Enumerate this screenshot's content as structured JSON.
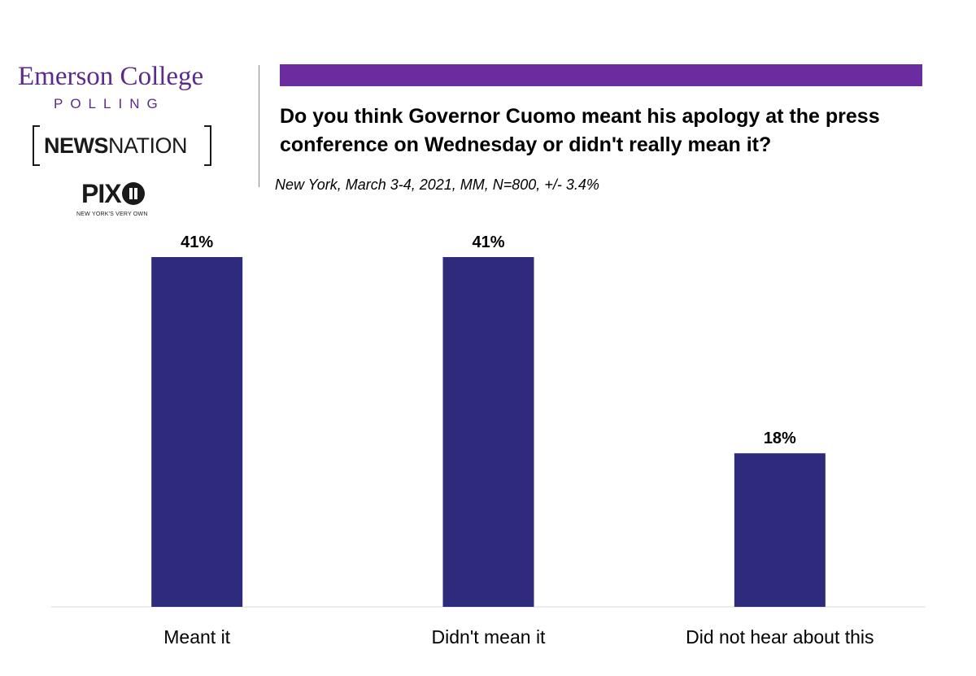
{
  "logos": {
    "emerson_name": "Emerson College",
    "emerson_sub": "POLLING",
    "newsnation_bold": "NEWS",
    "newsnation_light": "NATION",
    "pix_text": "PIX",
    "pix_tagline": "NEW YORK'S VERY OWN"
  },
  "colors": {
    "accent_bar": "#6a2c9e",
    "bar_fill": "#2e2a7c",
    "logo_purple": "#5b2a8c"
  },
  "chart_data": {
    "type": "bar",
    "title": "Do you think Governor Cuomo meant his apology at the press conference on Wednesday or didn't really mean it?",
    "subtitle": "New York, March 3-4, 2021, MM, N=800, +/- 3.4%",
    "categories": [
      "Meant it",
      "Didn't mean it",
      "Did not hear about this"
    ],
    "values": [
      41,
      41,
      18
    ],
    "value_labels": [
      "41%",
      "41%",
      "18%"
    ],
    "xlabel": "",
    "ylabel": "",
    "ylim": [
      0,
      41
    ],
    "grid": false,
    "legend": "none",
    "y_axis_visible": false
  }
}
